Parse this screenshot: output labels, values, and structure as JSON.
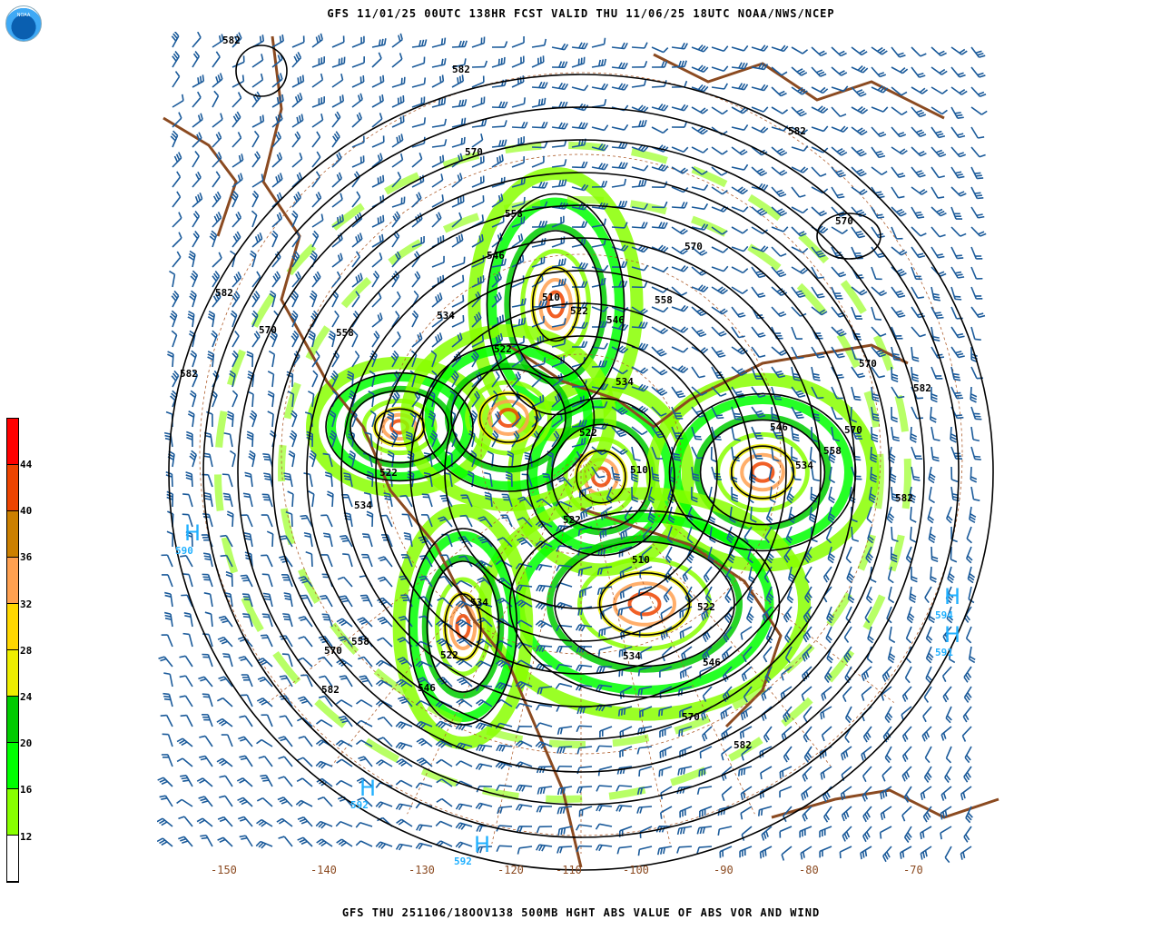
{
  "header": {
    "title": "GFS 11/01/25 00UTC 138HR FCST VALID THU 11/06/25 18UTC NOAA/NWS/NCEP",
    "logo_text": "NOAA"
  },
  "footer": {
    "title": "GFS THU 251106/18OOV138 500MB HGHT ABS VALUE OF ABS VOR AND WIND"
  },
  "colorbar": {
    "colors": [
      "#ff0000",
      "#ee4400",
      "#cc8000",
      "#ffa050",
      "#ffd700",
      "#eeee00",
      "#00cc00",
      "#00ff00",
      "#88ff00",
      "#ffffff"
    ],
    "labels": [
      "44",
      "40",
      "36",
      "32",
      "28",
      "24",
      "20",
      "16",
      "12"
    ]
  },
  "map": {
    "contour_color": "#000000",
    "barb_color": "#1a5a9a",
    "coast_color": "#8b4a20",
    "high_color": "#20b0ff",
    "contour_labels": [
      "582",
      "582",
      "570",
      "558",
      "546",
      "582",
      "570",
      "570",
      "582",
      "570",
      "558",
      "582",
      "534",
      "510",
      "522",
      "546",
      "558",
      "534",
      "522",
      "570",
      "582",
      "546",
      "570",
      "558",
      "534",
      "582",
      "522",
      "534",
      "522",
      "510",
      "522",
      "510",
      "534",
      "546",
      "570",
      "582",
      "522",
      "558",
      "570",
      "582",
      "546",
      "522",
      "534"
    ],
    "highs": [
      {
        "letter": "H",
        "value": "590"
      },
      {
        "letter": "H",
        "value": "594"
      },
      {
        "letter": "H",
        "value": "591"
      },
      {
        "letter": "H",
        "value": "592"
      },
      {
        "letter": "H",
        "value": "592"
      }
    ],
    "lon_labels": [
      "-150",
      "-140",
      "-130",
      "-120",
      "-110",
      "-100",
      "-90",
      "-80",
      "-70"
    ]
  }
}
